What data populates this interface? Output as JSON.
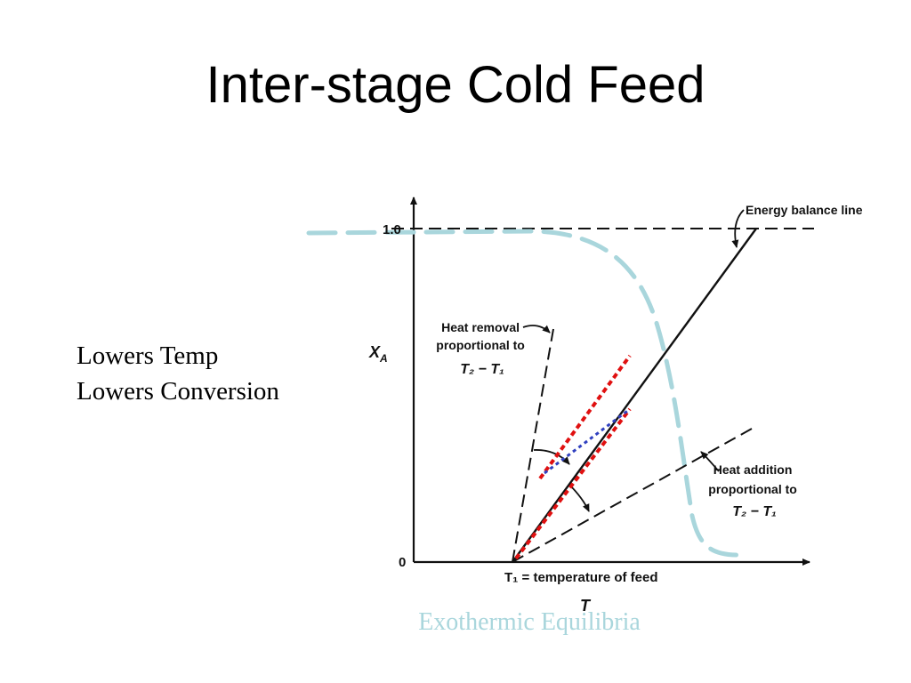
{
  "slide": {
    "title": "Inter-stage Cold Feed",
    "notes": [
      "Lowers Temp",
      "Lowers Conversion"
    ],
    "caption": "Exothermic Equilibria"
  },
  "diagram": {
    "y_axis_label": "X",
    "y_axis_subscript": "A",
    "y_tick_top": "1.0",
    "y_tick_bottom": "0",
    "x_axis_label": "T",
    "feed_label": "T₁ = temperature of feed",
    "energy_balance_label": "Energy balance line",
    "heat_removal_label": [
      "Heat removal",
      "proportional to",
      "T₂ − T₁"
    ],
    "heat_addition_label": [
      "Heat addition",
      "proportional to",
      "T₂ − T₁"
    ]
  },
  "colors": {
    "equilibrium_curve": "#a9d6dc",
    "cold_feed_line": "#e01010",
    "mixing_line": "#3040c0",
    "ink": "#111111"
  }
}
